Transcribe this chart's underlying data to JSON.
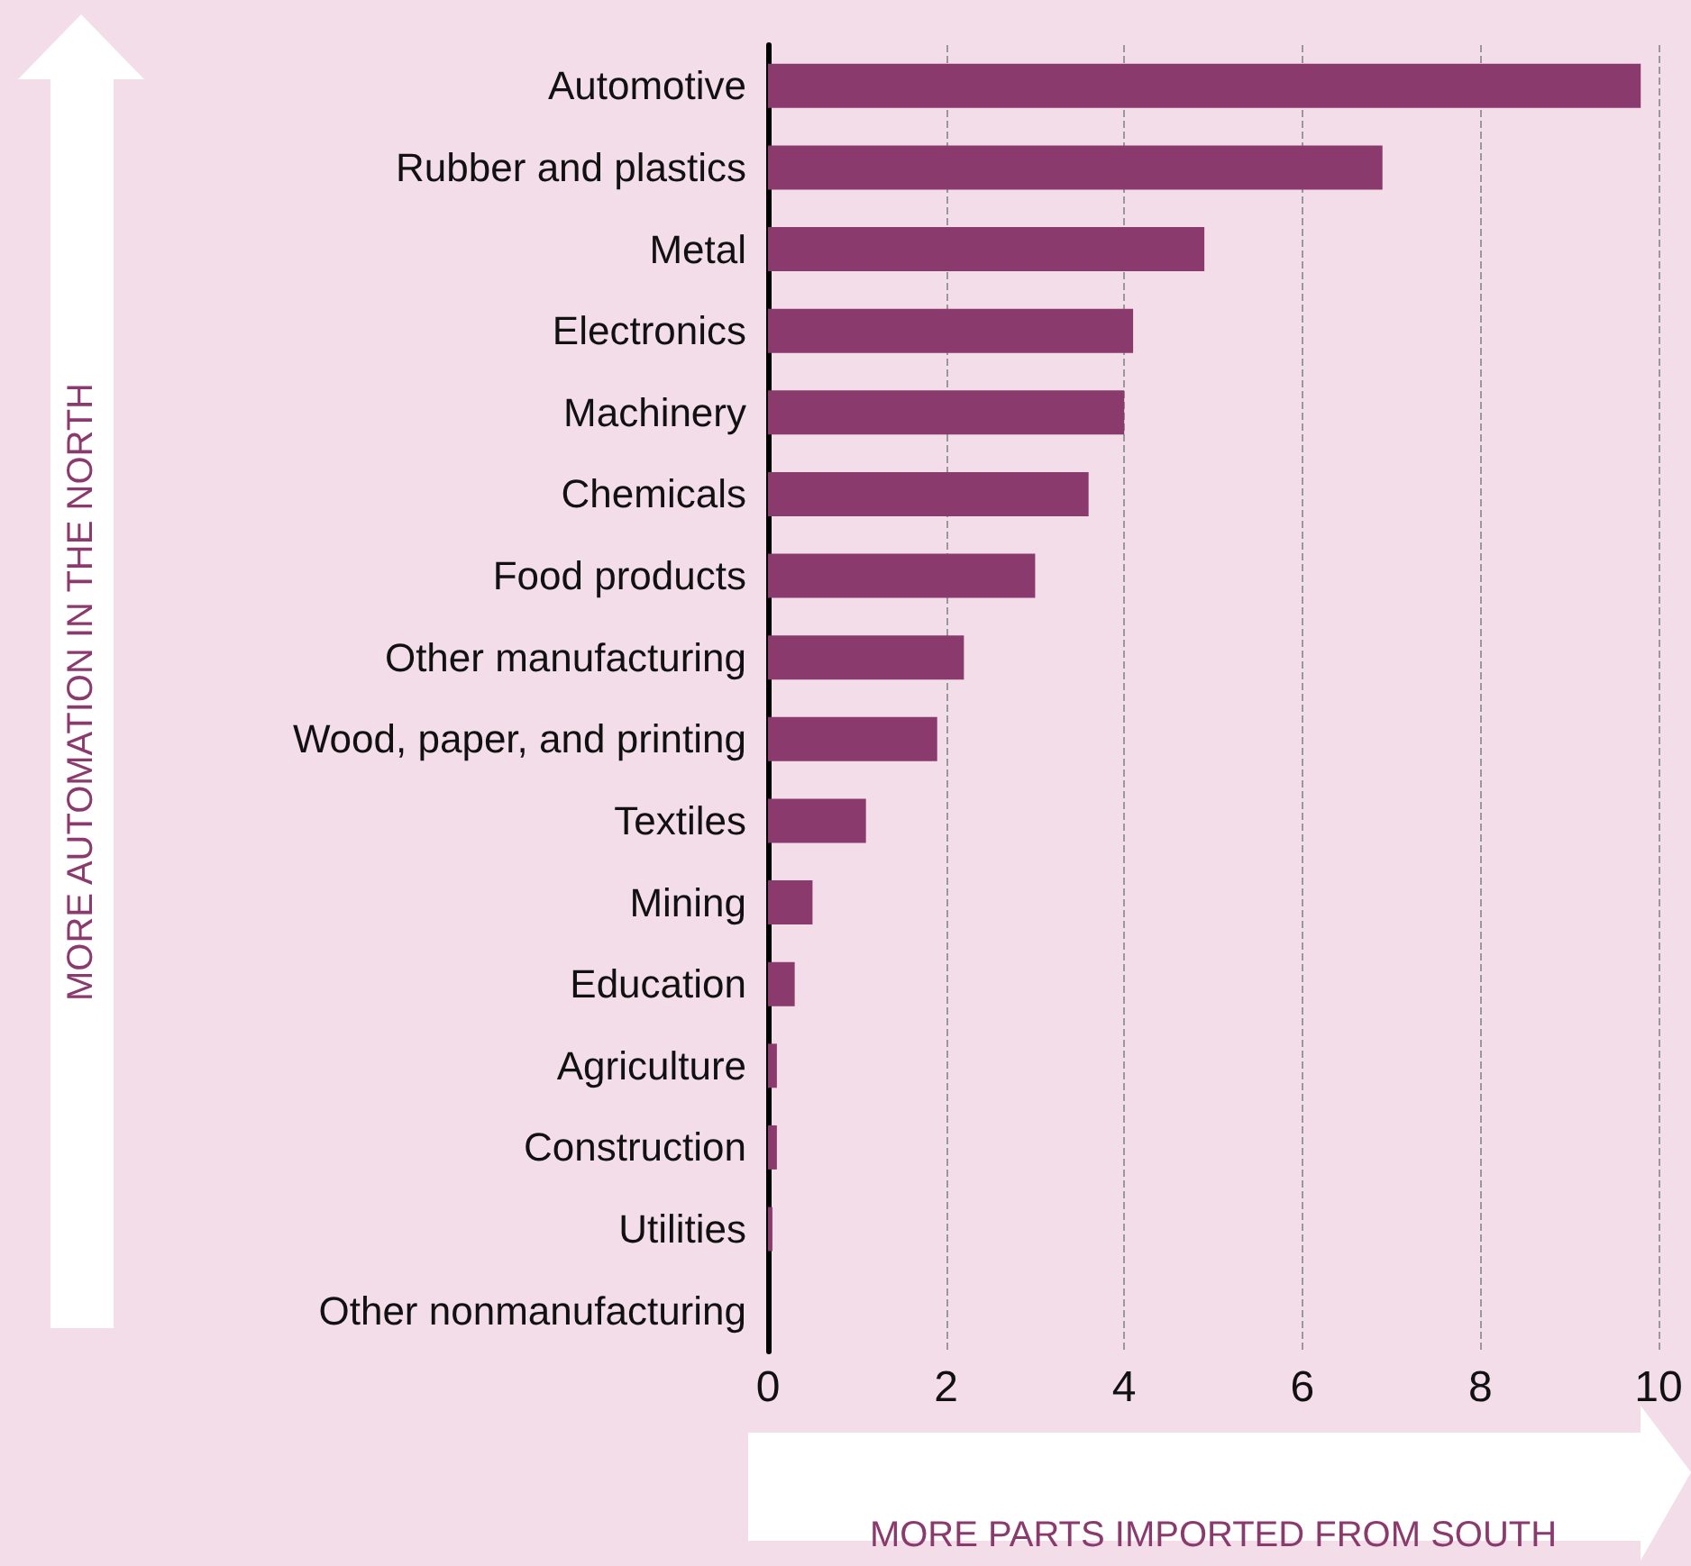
{
  "chart_data": {
    "type": "bar",
    "orientation": "horizontal",
    "xlabel": "MORE PARTS IMPORTED FROM SOUTH",
    "annotations": [
      "MORE AUTOMATION IN THE NORTH"
    ],
    "categories": [
      "Automotive",
      "Rubber and plastics",
      "Metal",
      "Electronics",
      "Machinery",
      "Chemicals",
      "Food products",
      "Other manufacturing",
      "Wood, paper, and printing",
      "Textiles",
      "Mining",
      "Education",
      "Agriculture",
      "Construction",
      "Utilities",
      "Other nonmanufacturing"
    ],
    "values": [
      9.8,
      6.9,
      4.9,
      4.1,
      4.0,
      3.6,
      3.0,
      2.2,
      1.9,
      1.1,
      0.5,
      0.3,
      0.1,
      0.1,
      0.05,
      0
    ],
    "color": "#8b3a6e",
    "xlim": [
      0,
      10
    ],
    "xticks": [
      0,
      2,
      4,
      6,
      8,
      10
    ],
    "grid": "x"
  }
}
